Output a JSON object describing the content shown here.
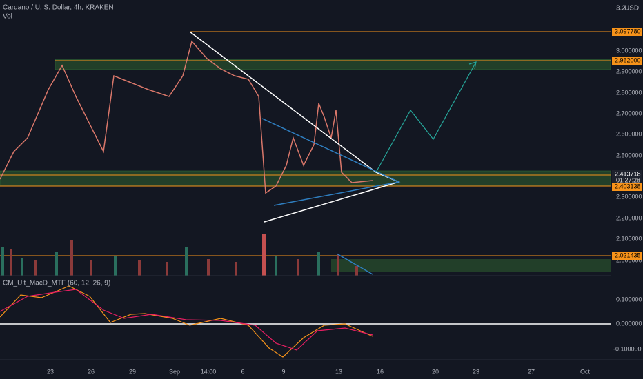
{
  "header": {
    "title": "Cardano / U. S. Dollar, 4h, KRAKEN",
    "volume": "Vol",
    "currency": "USD",
    "top_price": "3.2"
  },
  "price_axis": {
    "labels": [
      "3.000000",
      "2.900000",
      "2.800000",
      "2.700000",
      "2.600000",
      "2.500000",
      "2.300000",
      "2.200000",
      "2.100000",
      "2.000000"
    ],
    "badges": {
      "high": "3.097780",
      "resistance": "2.962000",
      "last": "2.413718",
      "countdown": "01:27:28",
      "support": "2.403138",
      "low": "2.021435"
    }
  },
  "indicator": {
    "name": "CM_Ult_MacD_MTF (60, 12, 26, 9)",
    "labels": [
      "0.100000",
      "0.000000",
      "-0.100000"
    ]
  },
  "time_axis": {
    "labels": [
      "23",
      "26",
      "29",
      "Sep",
      "14:00",
      "6",
      "9",
      "13",
      "16",
      "20",
      "23",
      "27",
      "Oct"
    ]
  }
}
